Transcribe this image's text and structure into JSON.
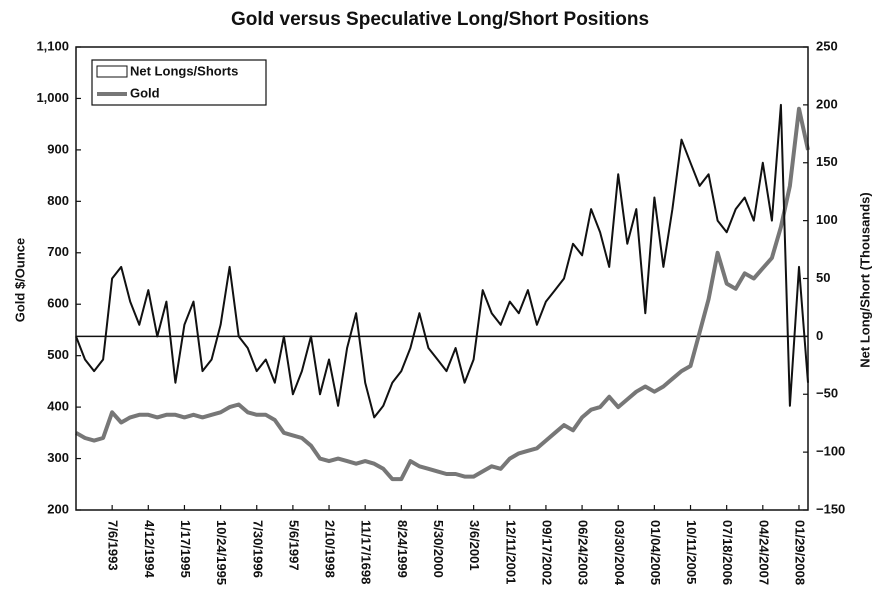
{
  "chart_data": {
    "type": "line",
    "title": "Gold versus Speculative Long/Short Positions",
    "y_label": "Gold $/Ounce",
    "y2_label": "Net Long/Short (Thousands)",
    "categories": [
      null,
      null,
      null,
      null,
      "7/6/1993",
      null,
      null,
      null,
      "4/12/1994",
      null,
      null,
      null,
      "1/17/1995",
      null,
      null,
      null,
      "10/24/1995",
      null,
      null,
      null,
      "7/30/1996",
      null,
      null,
      null,
      "5/6/1997",
      null,
      null,
      null,
      "2/10/1998",
      null,
      null,
      null,
      "11/17/1698",
      null,
      null,
      null,
      "8/24/1999",
      null,
      null,
      null,
      "5/30/2000",
      null,
      null,
      null,
      "3/6/2001",
      null,
      null,
      null,
      "12/11/2001",
      null,
      null,
      null,
      "09/17/2002",
      null,
      null,
      null,
      "06/24/2003",
      null,
      null,
      null,
      "03/30/2004",
      null,
      null,
      null,
      "01/04/2005",
      null,
      null,
      null,
      "10/11/2005",
      null,
      null,
      null,
      "07/18/2006",
      null,
      null,
      null,
      "04/24/2007",
      null,
      null,
      null,
      "01/29/2008",
      null
    ],
    "series": [
      {
        "name": "Net Longs/Shorts",
        "color": "#111111",
        "axis": "y2",
        "values": [
          0,
          -20,
          -30,
          -20,
          50,
          60,
          30,
          10,
          40,
          0,
          30,
          -40,
          10,
          30,
          -30,
          -20,
          10,
          60,
          0,
          -10,
          -30,
          -20,
          -40,
          0,
          -50,
          -30,
          0,
          -50,
          -20,
          -60,
          -10,
          20,
          -40,
          -70,
          -60,
          -40,
          -30,
          -10,
          20,
          -10,
          -20,
          -30,
          -10,
          -40,
          -20,
          40,
          20,
          10,
          30,
          20,
          40,
          10,
          30,
          40,
          50,
          80,
          70,
          110,
          90,
          60,
          140,
          80,
          110,
          20,
          120,
          60,
          110,
          170,
          150,
          130,
          140,
          100,
          90,
          110,
          120,
          100,
          150,
          100,
          200,
          -60,
          60,
          -40
        ]
      },
      {
        "name": "Gold",
        "color": "#777777",
        "values": [
          350,
          340,
          335,
          340,
          390,
          370,
          380,
          385,
          385,
          380,
          385,
          385,
          380,
          385,
          380,
          385,
          390,
          400,
          405,
          390,
          385,
          385,
          375,
          350,
          345,
          340,
          325,
          300,
          295,
          300,
          295,
          290,
          295,
          290,
          280,
          260,
          260,
          295,
          285,
          280,
          275,
          270,
          270,
          265,
          265,
          275,
          285,
          280,
          300,
          310,
          315,
          320,
          335,
          350,
          365,
          355,
          380,
          395,
          400,
          420,
          400,
          415,
          430,
          440,
          430,
          440,
          455,
          470,
          480,
          545,
          610,
          700,
          640,
          630,
          660,
          650,
          670,
          690,
          750,
          830,
          980,
          900
        ]
      }
    ],
    "ylim": [
      200,
      1100
    ],
    "yticks": [
      200,
      300,
      400,
      500,
      600,
      700,
      800,
      900,
      {
        "value": 1000,
        "label": "1,000"
      },
      {
        "value": 1100,
        "label": "1,100"
      }
    ],
    "y2lim": [
      -150,
      250
    ],
    "y2ticks": [
      {
        "value": -150,
        "label": "−150"
      },
      {
        "value": -100,
        "label": "−100"
      },
      {
        "value": -50,
        "label": "−50"
      },
      0,
      50,
      100,
      150,
      200,
      250
    ],
    "legend": "upper left"
  }
}
